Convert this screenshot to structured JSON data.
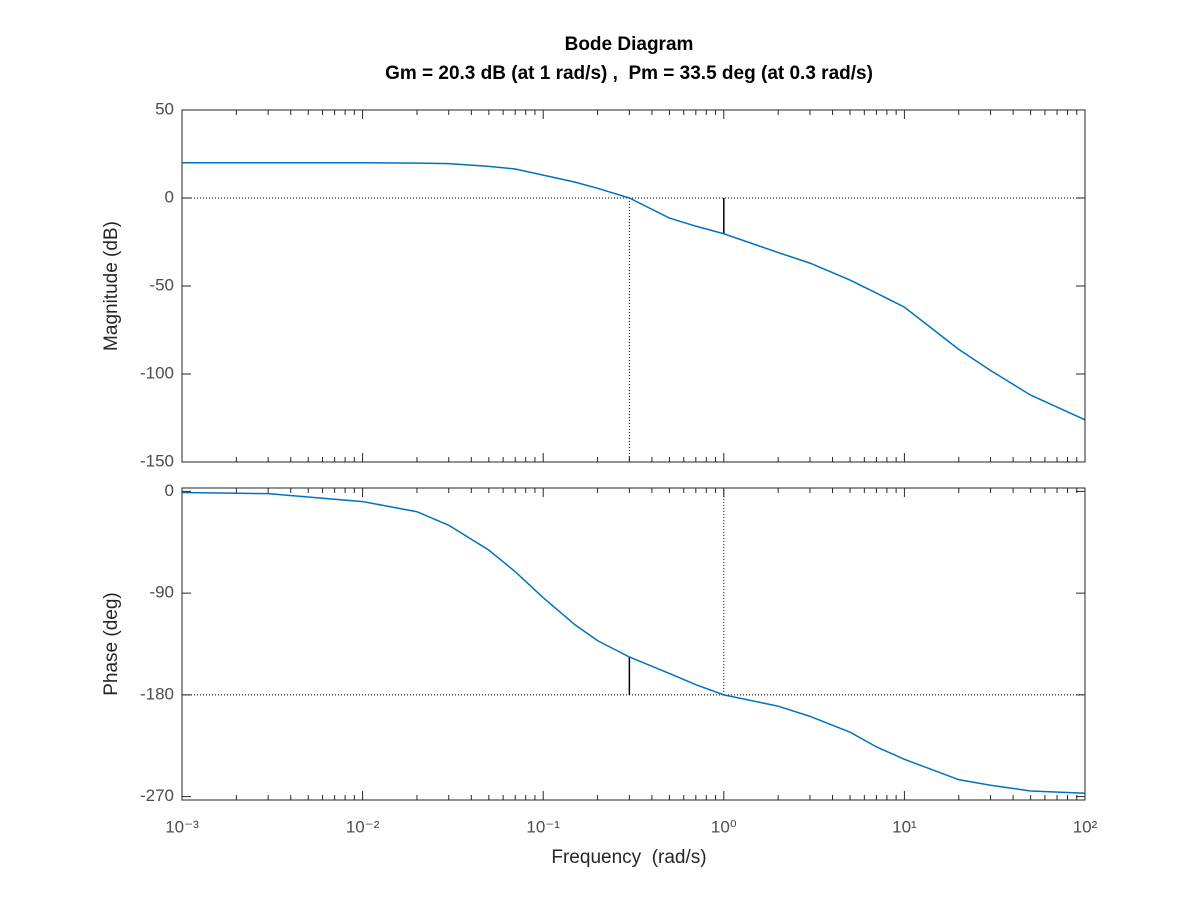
{
  "chart_data": [
    {
      "type": "line",
      "title": "Bode Diagram",
      "subtitle": "Gm = 20.3 dB (at 1 rad/s) ,  Pm = 33.5 deg (at 0.3 rad/s)",
      "ylabel": "Magnitude (dB)",
      "xscale": "log",
      "xlim": [
        0.001,
        100
      ],
      "ylim": [
        -150,
        50
      ],
      "yticks": [
        50,
        0,
        -50,
        -100,
        -150
      ],
      "color": "#0072bd",
      "x": [
        0.001,
        0.01,
        0.02,
        0.03,
        0.05,
        0.07,
        0.1,
        0.15,
        0.2,
        0.3,
        0.5,
        0.7,
        1,
        2,
        3,
        5,
        7,
        10,
        20,
        30,
        50,
        100
      ],
      "values": [
        20,
        20,
        19.8,
        19.5,
        18,
        16.5,
        13,
        9,
        5.5,
        0,
        -11.4,
        -16,
        -20.3,
        -31,
        -37,
        -46.6,
        -54,
        -62,
        -86,
        -98,
        -112,
        -126
      ],
      "ref_y": 0,
      "crossing_x": 0.3,
      "gain_margin": {
        "x": 1,
        "y": [
          0,
          -20.3
        ]
      }
    },
    {
      "type": "line",
      "ylabel": "Phase (deg)",
      "xlabel": "Frequency  (rad/s)",
      "xscale": "log",
      "xlim": [
        0.001,
        100
      ],
      "xticks": [
        {
          "value": 0.001,
          "label": "10⁻³"
        },
        {
          "value": 0.01,
          "label": "10⁻²"
        },
        {
          "value": 0.1,
          "label": "10⁻¹"
        },
        {
          "value": 1,
          "label": "10⁰"
        },
        {
          "value": 10,
          "label": "10¹"
        },
        {
          "value": 100,
          "label": "10²"
        }
      ],
      "ylim": [
        -273,
        3
      ],
      "yticks": [
        0,
        -90,
        -180,
        -270
      ],
      "color": "#0072bd",
      "x": [
        0.001,
        0.003,
        0.01,
        0.02,
        0.03,
        0.05,
        0.07,
        0.1,
        0.15,
        0.2,
        0.3,
        0.5,
        0.7,
        1,
        2,
        3,
        5,
        7,
        10,
        20,
        30,
        50,
        100
      ],
      "values": [
        -1,
        -2,
        -9,
        -18,
        -30,
        -52,
        -71,
        -94,
        -118,
        -132,
        -146.5,
        -161,
        -171,
        -180,
        -190,
        -199,
        -213,
        -226,
        -237,
        -255,
        -260,
        -265,
        -267
      ],
      "ref_y": -180,
      "crossing_x": 1,
      "phase_margin": {
        "x": 0.3,
        "y": [
          -180,
          -146.5
        ]
      }
    }
  ]
}
